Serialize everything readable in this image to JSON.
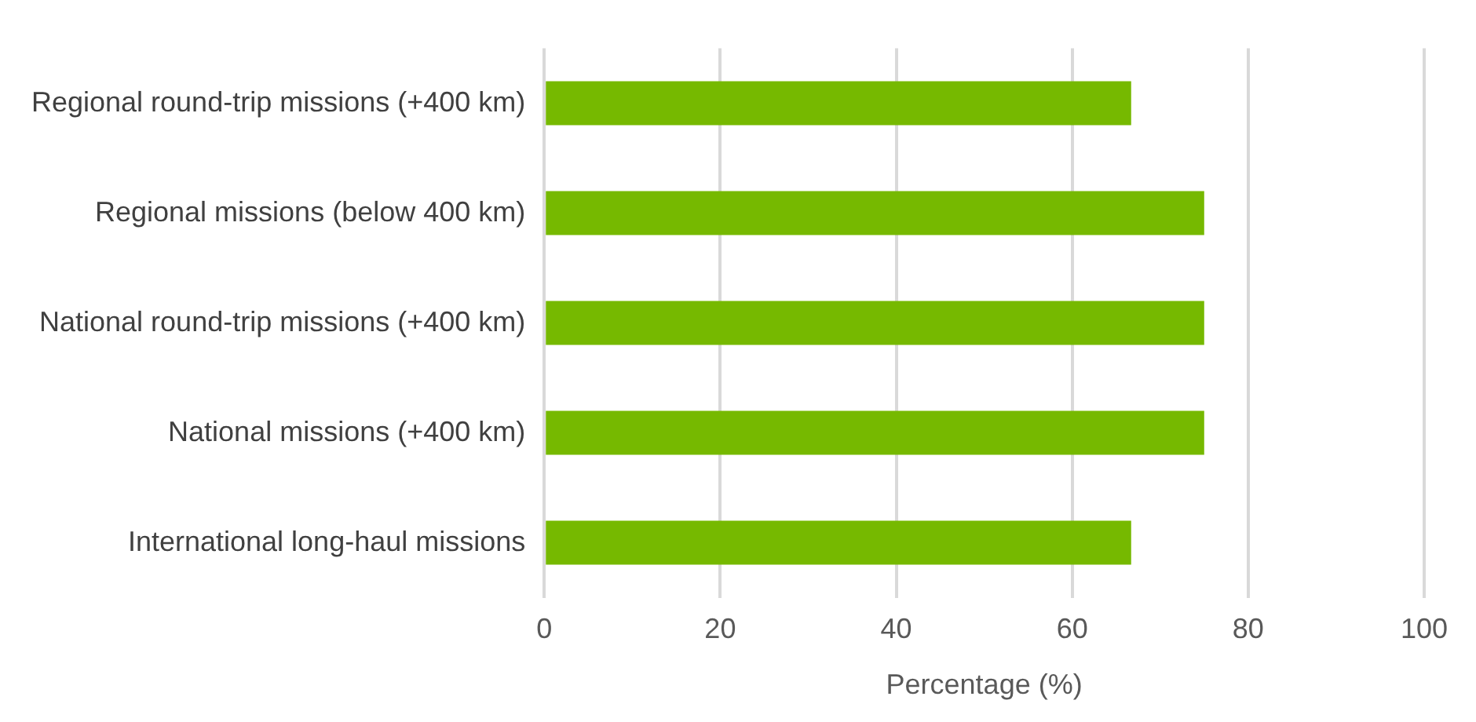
{
  "chart_data": {
    "type": "bar",
    "orientation": "horizontal",
    "xlabel": "Percentage (%)",
    "categories": [
      "Regional round-trip missions (+400 km)",
      "Regional missions (below 400 km)",
      "National round-trip missions (+400 km)",
      "National missions (+400 km)",
      "International long-haul missions"
    ],
    "values": [
      66.7,
      75,
      75,
      75,
      66.7
    ],
    "color": "#76b900",
    "xlim": [
      0,
      100
    ],
    "xticks": [
      0,
      20,
      40,
      60,
      80,
      100
    ],
    "grid": "x",
    "legend": false
  }
}
